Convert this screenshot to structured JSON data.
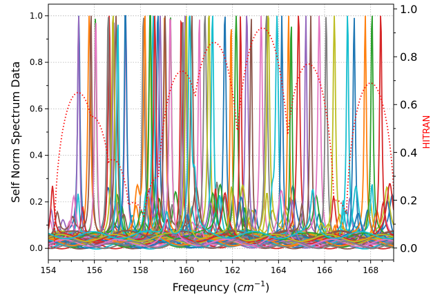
{
  "chart_data": {
    "type": "line",
    "title": "",
    "xlabel_text": "Freqeuncy (",
    "xlabel_unit": "cm",
    "xlabel_exp": "−1",
    "xlabel_close": ")",
    "ylabel_left": "Self Norm Spectrum Data",
    "ylabel_right": "HITRAN",
    "xlim": [
      154,
      169
    ],
    "ylim_left": [
      -0.05,
      1.05
    ],
    "ylim_right": [
      -0.05,
      1.02
    ],
    "xticks": [
      154,
      156,
      158,
      160,
      162,
      164,
      166,
      168
    ],
    "xtick_labels": [
      "154",
      "156",
      "158",
      "160",
      "162",
      "164",
      "166",
      "168"
    ],
    "yticks_left": [
      0.0,
      0.2,
      0.4,
      0.6,
      0.8,
      1.0
    ],
    "ytick_labels_left": [
      "0.0",
      "0.2",
      "0.4",
      "0.6",
      "0.8",
      "1.0"
    ],
    "yticks_right": [
      0.0,
      0.2,
      0.4,
      0.6,
      0.8,
      1.0
    ],
    "ytick_labels_right": [
      "0.0",
      "0.2",
      "0.4",
      "0.6",
      "0.8",
      "1.0"
    ],
    "grid": true,
    "right_axis_color": "#ff0000",
    "palette": [
      "#1f77b4",
      "#ff7f0e",
      "#2ca02c",
      "#d62728",
      "#9467bd",
      "#8c564b",
      "#e377c2",
      "#7f7f7f",
      "#bcbd22",
      "#17becf"
    ],
    "peak_centers": [
      155.3,
      155.8,
      156.0,
      156.6,
      156.8,
      157.0,
      157.4,
      158.2,
      158.4,
      158.6,
      158.8,
      159.0,
      159.3,
      159.8,
      160.0,
      160.2,
      160.6,
      160.8,
      161.0,
      161.2,
      161.6,
      161.9,
      162.2,
      162.4,
      162.6,
      162.8,
      163.2,
      163.4,
      163.6,
      163.9,
      164.2,
      164.4,
      164.6,
      164.9,
      165.2,
      165.4,
      165.7,
      166.0,
      166.4,
      167.0,
      167.3,
      167.8,
      168.0,
      168.4
    ],
    "hitran_series": {
      "name": "HITRAN",
      "color": "#ff0000",
      "style": "dotted",
      "peaks": [
        {
          "center": 155.3,
          "value": 0.65
        },
        {
          "center": 155.9,
          "value": 0.55
        },
        {
          "center": 156.8,
          "value": 0.37
        },
        {
          "center": 157.7,
          "value": 0.19
        },
        {
          "center": 158.8,
          "value": 0.3
        },
        {
          "center": 159.8,
          "value": 0.74
        },
        {
          "center": 161.2,
          "value": 0.86
        },
        {
          "center": 163.3,
          "value": 0.92
        },
        {
          "center": 165.3,
          "value": 0.77
        },
        {
          "center": 166.5,
          "value": 0.2
        },
        {
          "center": 168.0,
          "value": 0.69
        }
      ]
    },
    "series_count": 60,
    "series_peak_value": 1.0
  }
}
